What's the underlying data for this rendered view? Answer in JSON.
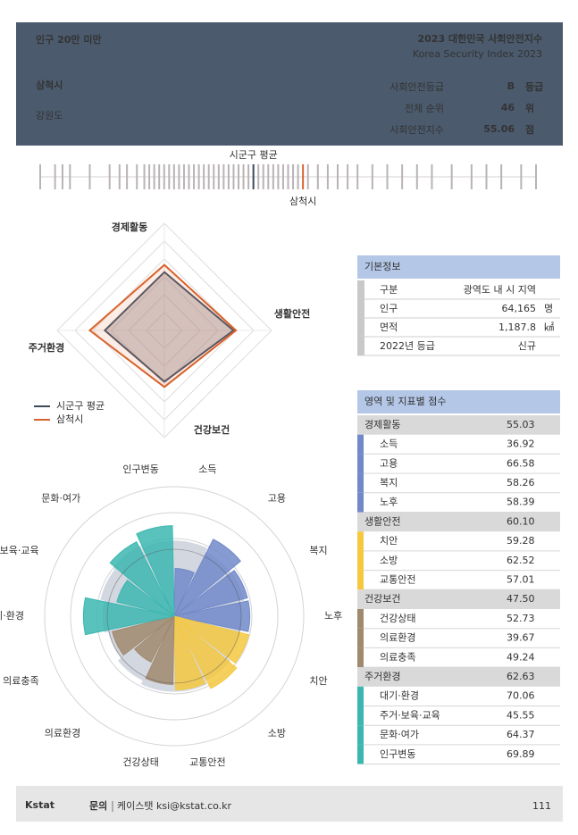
{
  "header": {
    "population_group": "인구 20만 미만",
    "index_title": "2023 대한민국 사회안전지수",
    "index_subtitle": "Korea Security Index 2023",
    "city": "삼척시",
    "province": "강원도",
    "stats": [
      {
        "label": "사회안전등급",
        "value": "B",
        "unit": "등급"
      },
      {
        "label": "전체 순위",
        "value": "46",
        "unit": "위"
      },
      {
        "label": "사회안전지수",
        "value": "55.06",
        "unit": "점"
      }
    ]
  },
  "basic_info": {
    "title": "기본정보",
    "rows": [
      [
        "구분",
        "광역도 내 시 지역"
      ],
      [
        "인구",
        "64,165",
        "명"
      ],
      [
        "면적",
        "1,187.8",
        "㎢"
      ],
      [
        "2022년 등급",
        "신규"
      ]
    ]
  },
  "scores": {
    "title": "영역 및 지표별 점수",
    "groups": [
      {
        "name": "경제활동",
        "score": "55.03",
        "color": "#7189c9",
        "items": [
          {
            "name": "소득",
            "score": "36.92"
          },
          {
            "name": "고용",
            "score": "66.58"
          },
          {
            "name": "복지",
            "score": "58.26"
          },
          {
            "name": "노후",
            "score": "58.39"
          }
        ]
      },
      {
        "name": "생활안전",
        "score": "60.10",
        "color": "#f5c83f",
        "items": [
          {
            "name": "치안",
            "score": "59.28"
          },
          {
            "name": "소방",
            "score": "62.52"
          },
          {
            "name": "교통안전",
            "score": "57.01"
          }
        ]
      },
      {
        "name": "건강보건",
        "score": "47.50",
        "color": "#a08a6d",
        "items": [
          {
            "name": "건강상태",
            "score": "52.73"
          },
          {
            "name": "의료환경",
            "score": "39.67"
          },
          {
            "name": "의료충족",
            "score": "49.24"
          }
        ]
      },
      {
        "name": "주거환경",
        "score": "62.63",
        "color": "#3cb7b0",
        "items": [
          {
            "name": "대기·환경",
            "score": "70.06"
          },
          {
            "name": "주거·보육·교육",
            "score": "45.55"
          },
          {
            "name": "문화·여가",
            "score": "64.37"
          },
          {
            "name": "인구변동",
            "score": "69.89"
          }
        ]
      }
    ]
  },
  "chart_data": [
    {
      "type": "strip",
      "x": [
        0,
        3,
        4.5,
        6,
        10,
        14,
        16,
        17.5,
        19.5,
        21,
        22,
        23,
        24,
        25,
        26,
        27,
        28,
        29,
        30,
        31,
        32,
        33,
        34,
        35,
        36,
        37,
        38,
        39,
        40,
        41,
        42,
        44,
        45,
        46,
        47,
        48,
        49,
        50,
        51,
        52,
        54,
        56,
        58,
        60,
        62,
        64,
        67,
        70,
        73,
        76,
        79,
        83,
        87,
        90,
        93,
        97,
        100
      ],
      "xlim": [
        0,
        100
      ],
      "color": "#b9b3b6",
      "markers": [
        {
          "label": "시군구 평균",
          "x": 43,
          "color": "#3d4a5c"
        },
        {
          "label": "삼척시",
          "x": 53,
          "color": "#d9622b"
        }
      ]
    },
    {
      "type": "radar",
      "categories": [
        "경제활동",
        "생활안전",
        "건강보건",
        "주거환경"
      ],
      "series": [
        {
          "name": "시군구 평균",
          "color": "#3d4a5c",
          "values": [
            49,
            58,
            43,
            50
          ]
        },
        {
          "name": "삼척시",
          "color": "#d9622b",
          "values": [
            55.03,
            60.1,
            47.5,
            62.63
          ]
        }
      ],
      "ylim": [
        0,
        90
      ],
      "yticks": [
        15,
        30,
        45,
        60,
        75,
        90
      ]
    },
    {
      "type": "polar-bar",
      "categories": [
        "소득",
        "고용",
        "복지",
        "노후",
        "치안",
        "소방",
        "교통안전",
        "건강상태",
        "의료환경",
        "의료충족",
        "대기·환경",
        "주거·보육·교육",
        "문화·여가",
        "인구변동"
      ],
      "values": [
        36.92,
        66.58,
        58.26,
        58.39,
        59.28,
        62.52,
        57.01,
        52.73,
        39.67,
        49.24,
        70.06,
        45.55,
        64.37,
        69.89
      ],
      "colors": [
        "#7189c9",
        "#7189c9",
        "#7189c9",
        "#7189c9",
        "#f5c83f",
        "#f5c83f",
        "#f5c83f",
        "#a08a6d",
        "#a08a6d",
        "#a08a6d",
        "#3cb7b0",
        "#3cb7b0",
        "#3cb7b0",
        "#3cb7b0"
      ],
      "average": [
        58,
        55,
        55,
        52,
        52,
        55,
        58,
        58,
        55,
        52,
        55,
        58,
        60,
        58
      ],
      "average_color": "#d3d7e0",
      "ylim": [
        0,
        100
      ],
      "yticks": [
        20,
        40,
        60,
        80,
        100
      ]
    }
  ],
  "footer": {
    "logo": "Kstat",
    "contact_label": "문의",
    "contact": "케이스탯 ksi@kstat.co.kr",
    "page": "111"
  }
}
